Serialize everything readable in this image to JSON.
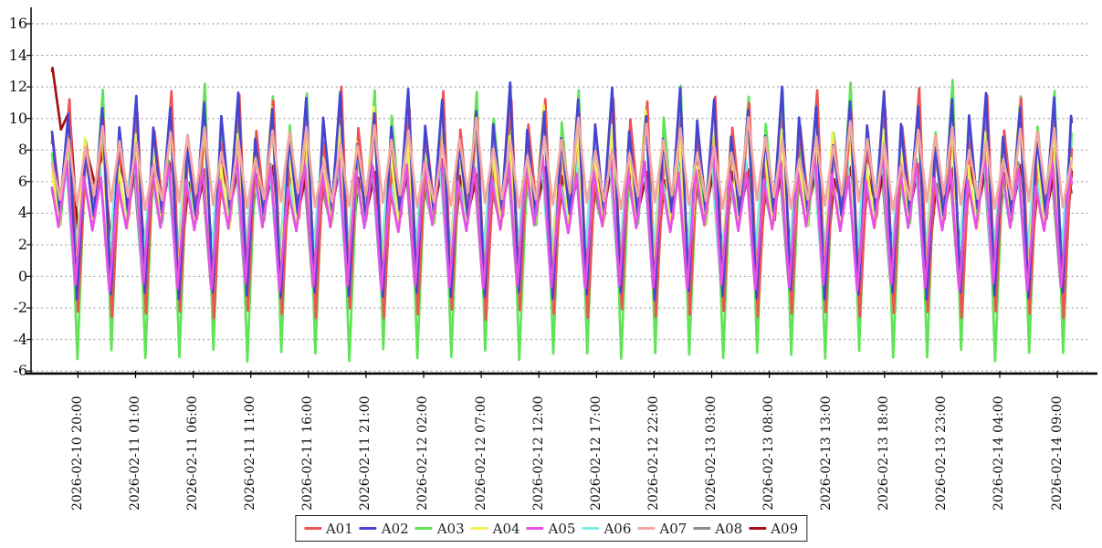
{
  "figure": {
    "background_color": "#ffffff",
    "axis_color": "#000000",
    "grid_color": "#8f8f8f",
    "tick_label_color": "#111111",
    "line_width": 2.7
  },
  "chart_data": {
    "type": "line",
    "title": "",
    "xlabel": "",
    "ylabel": "",
    "grid": {
      "horizontal": true,
      "vertical": false,
      "style": "dashed"
    },
    "legend": {
      "position": "bottom-center",
      "boxed": true,
      "entries": [
        "A01",
        "A02",
        "A03",
        "A04",
        "A05",
        "A06",
        "A07",
        "A08",
        "A09"
      ]
    },
    "x_axis": {
      "tick_interval_hours": 5,
      "lead_hours": 2.25,
      "total_hours": 88.5,
      "tick_labels": [
        "2026-02-10 20:00",
        "2026-02-11 01:00",
        "2026-02-11 06:00",
        "2026-02-11 11:00",
        "2026-02-11 16:00",
        "2026-02-11 21:00",
        "2026-02-12 02:00",
        "2026-02-12 07:00",
        "2026-02-12 12:00",
        "2026-02-12 17:00",
        "2026-02-12 22:00",
        "2026-02-13 03:00",
        "2026-02-13 08:00",
        "2026-02-13 13:00",
        "2026-02-13 18:00",
        "2026-02-13 23:00",
        "2026-02-14 04:00",
        "2026-02-14 09:00"
      ]
    },
    "y_axis": {
      "ticks": [
        16,
        14,
        12,
        10,
        8,
        6,
        4,
        2,
        0,
        -2,
        -4,
        -6
      ],
      "min_visible": -6,
      "max_visible": 16,
      "tick_step": 2
    },
    "waveform": "triangular oscillation, period ~1.475 h; valleys alternate deep/shallow, peaks alternate tall/medium",
    "peak_ramp": {
      "depth": 0.13,
      "tau_hours": 7
    },
    "draw_order": [
      "A08",
      "A09",
      "A06",
      "A03",
      "A01",
      "A04",
      "A02",
      "A05",
      "A07"
    ],
    "series": [
      {
        "name": "A01",
        "color": "#ee5352",
        "period_hours": 1.475,
        "phase_hours": 0.7,
        "mid": 5.28,
        "amp_main": 4.52,
        "amp_alt": 3.15,
        "amp_peak_alt": 1.1,
        "amp_slow": 0.9,
        "amp_jitter": 0.35,
        "summary": {
          "peak_tall": 10.9,
          "peak_medium": 8.7,
          "valley_deep": -2.4,
          "valley_shallow": 3.9
        }
      },
      {
        "name": "A02",
        "color": "#4644d2",
        "period_hours": 1.475,
        "phase_hours": 0.8,
        "mid": 5.8,
        "amp_main": 4.4,
        "amp_alt": 2.6,
        "amp_peak_alt": 1.0,
        "amp_slow": 0.8,
        "amp_jitter": 0.3,
        "summary": {
          "peak_tall": 10.6,
          "peak_medium": 8.5,
          "valley_deep": -1.2,
          "valley_shallow": 4.0
        }
      },
      {
        "name": "A03",
        "color": "#5fe455",
        "period_hours": 1.475,
        "phase_hours": 0.75,
        "mid": 4.65,
        "amp_main": 5.35,
        "amp_alt": 4.3,
        "amp_peak_alt": 1.1,
        "amp_slow": 1.0,
        "amp_jitter": 0.4,
        "summary": {
          "peak_tall": 11.2,
          "peak_medium": 8.9,
          "valley_deep": -5.0,
          "valley_shallow": 3.6
        }
      },
      {
        "name": "A04",
        "color": "#f3f257",
        "period_hours": 1.475,
        "phase_hours": 0.85,
        "mid": 5.23,
        "amp_main": 3.67,
        "amp_alt": 1.75,
        "amp_peak_alt": 0.9,
        "amp_slow": 0.8,
        "amp_jitter": 0.35,
        "summary": {
          "peak_tall": 9.8,
          "peak_medium": 8.0,
          "valley_deep": -0.2,
          "valley_shallow": 3.3
        }
      },
      {
        "name": "A05",
        "color": "#e750e7",
        "period_hours": 1.475,
        "phase_hours": 0.92,
        "mid": 3.98,
        "amp_main": 2.82,
        "amp_alt": 1.85,
        "amp_peak_alt": 0.4,
        "amp_slow": 0.6,
        "amp_jitter": 0.3,
        "summary": {
          "peak_tall": 7.2,
          "peak_medium": 6.4,
          "valley_deep": -0.7,
          "valley_shallow": 3.0
        }
      },
      {
        "name": "A06",
        "color": "#79efe3",
        "period_hours": 1.475,
        "phase_hours": 1.02,
        "mid": 4.7,
        "amp_main": 2.6,
        "amp_alt": 1.7,
        "amp_peak_alt": 0.4,
        "amp_slow": 0.5,
        "amp_jitter": 0.3,
        "summary": {
          "peak_tall": 7.7,
          "peak_medium": 6.9,
          "valley_deep": 0.4,
          "valley_shallow": 3.8
        }
      },
      {
        "name": "A07",
        "color": "#f2a7a3",
        "period_hours": 1.475,
        "phase_hours": 0.78,
        "mid": 6.68,
        "amp_main": 1.93,
        "amp_alt": 0.25,
        "amp_peak_alt": 0.5,
        "amp_slow": 0.8,
        "amp_jitter": 0.3,
        "summary": {
          "peak_tall": 9.1,
          "peak_medium": 8.1,
          "valley_deep": 4.5,
          "valley_shallow": 5.0
        }
      },
      {
        "name": "A08",
        "color": "#8c8c8c",
        "period_hours": 1.475,
        "phase_hours": 0.96,
        "mid": 4.0,
        "amp_main": 2.5,
        "amp_alt": 2.0,
        "amp_peak_alt": 0.3,
        "amp_slow": 0.4,
        "amp_jitter": 0.25,
        "summary": {
          "peak_tall": 6.8,
          "peak_medium": 6.2,
          "valley_deep": -0.5,
          "valley_shallow": 3.5
        }
      },
      {
        "name": "A09",
        "color": "#a31111",
        "period_hours": 1.475,
        "phase_hours": 0.7,
        "mid": 4.5,
        "amp_main": 2.3,
        "amp_alt": 2.15,
        "amp_peak_alt": 0.3,
        "amp_slow": 0.4,
        "amp_jitter": 0.25,
        "transient": {
          "start_value": 13.2,
          "extra_amp": 6.5,
          "decay_tau_hours": 2.6
        },
        "summary": {
          "peak_tall": 7.1,
          "peak_medium": 6.5,
          "valley_deep": 0.1,
          "valley_shallow": 4.4
        }
      }
    ]
  }
}
